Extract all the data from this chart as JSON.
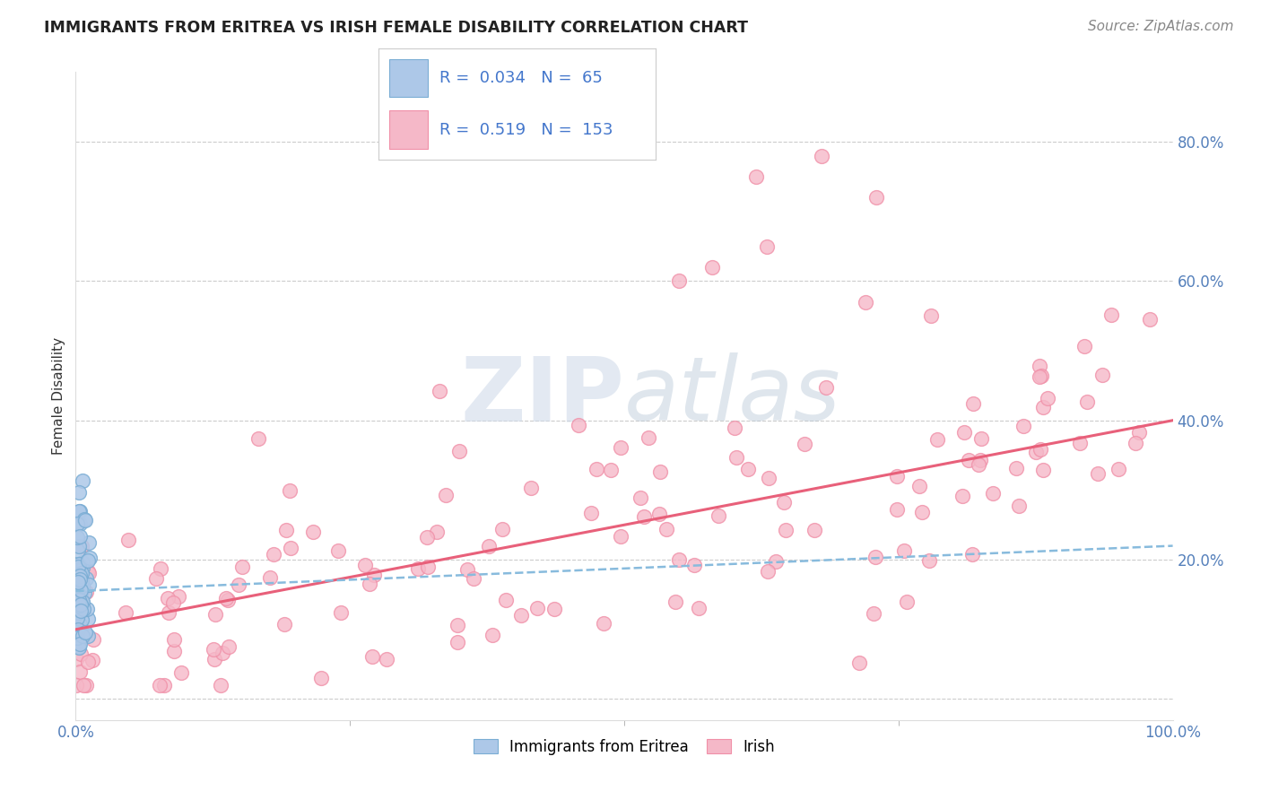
{
  "title": "IMMIGRANTS FROM ERITREA VS IRISH FEMALE DISABILITY CORRELATION CHART",
  "source": "Source: ZipAtlas.com",
  "ylabel": "Female Disability",
  "legend_label1": "Immigrants from Eritrea",
  "legend_label2": "Irish",
  "r1": 0.034,
  "n1": 65,
  "r2": 0.519,
  "n2": 153,
  "color1": "#adc8e8",
  "color2": "#f5b8c8",
  "edge_color1": "#7aadd4",
  "edge_color2": "#f090a8",
  "line_color1": "#88bbdd",
  "line_color2": "#e8607a",
  "xlim": [
    0.0,
    1.0
  ],
  "ylim": [
    -0.03,
    0.9
  ],
  "yticks": [
    0.0,
    0.2,
    0.4,
    0.6,
    0.8
  ],
  "ytick_labels": [
    "",
    "20.0%",
    "40.0%",
    "60.0%",
    "80.0%"
  ],
  "xtick_labels": [
    "0.0%",
    "100.0%"
  ],
  "background_color": "#ffffff",
  "watermark_zip": "ZIP",
  "watermark_atlas": "atlas",
  "title_color": "#222222",
  "grid_color": "#cccccc",
  "tick_label_color": "#5580bb",
  "source_color": "#888888",
  "ylabel_color": "#333333",
  "legend_r_color": "#4477cc",
  "legend_border_color": "#cccccc",
  "pink_line_intercept": 0.1,
  "pink_line_slope": 0.3,
  "blue_line_intercept": 0.155,
  "blue_line_slope": 0.065
}
